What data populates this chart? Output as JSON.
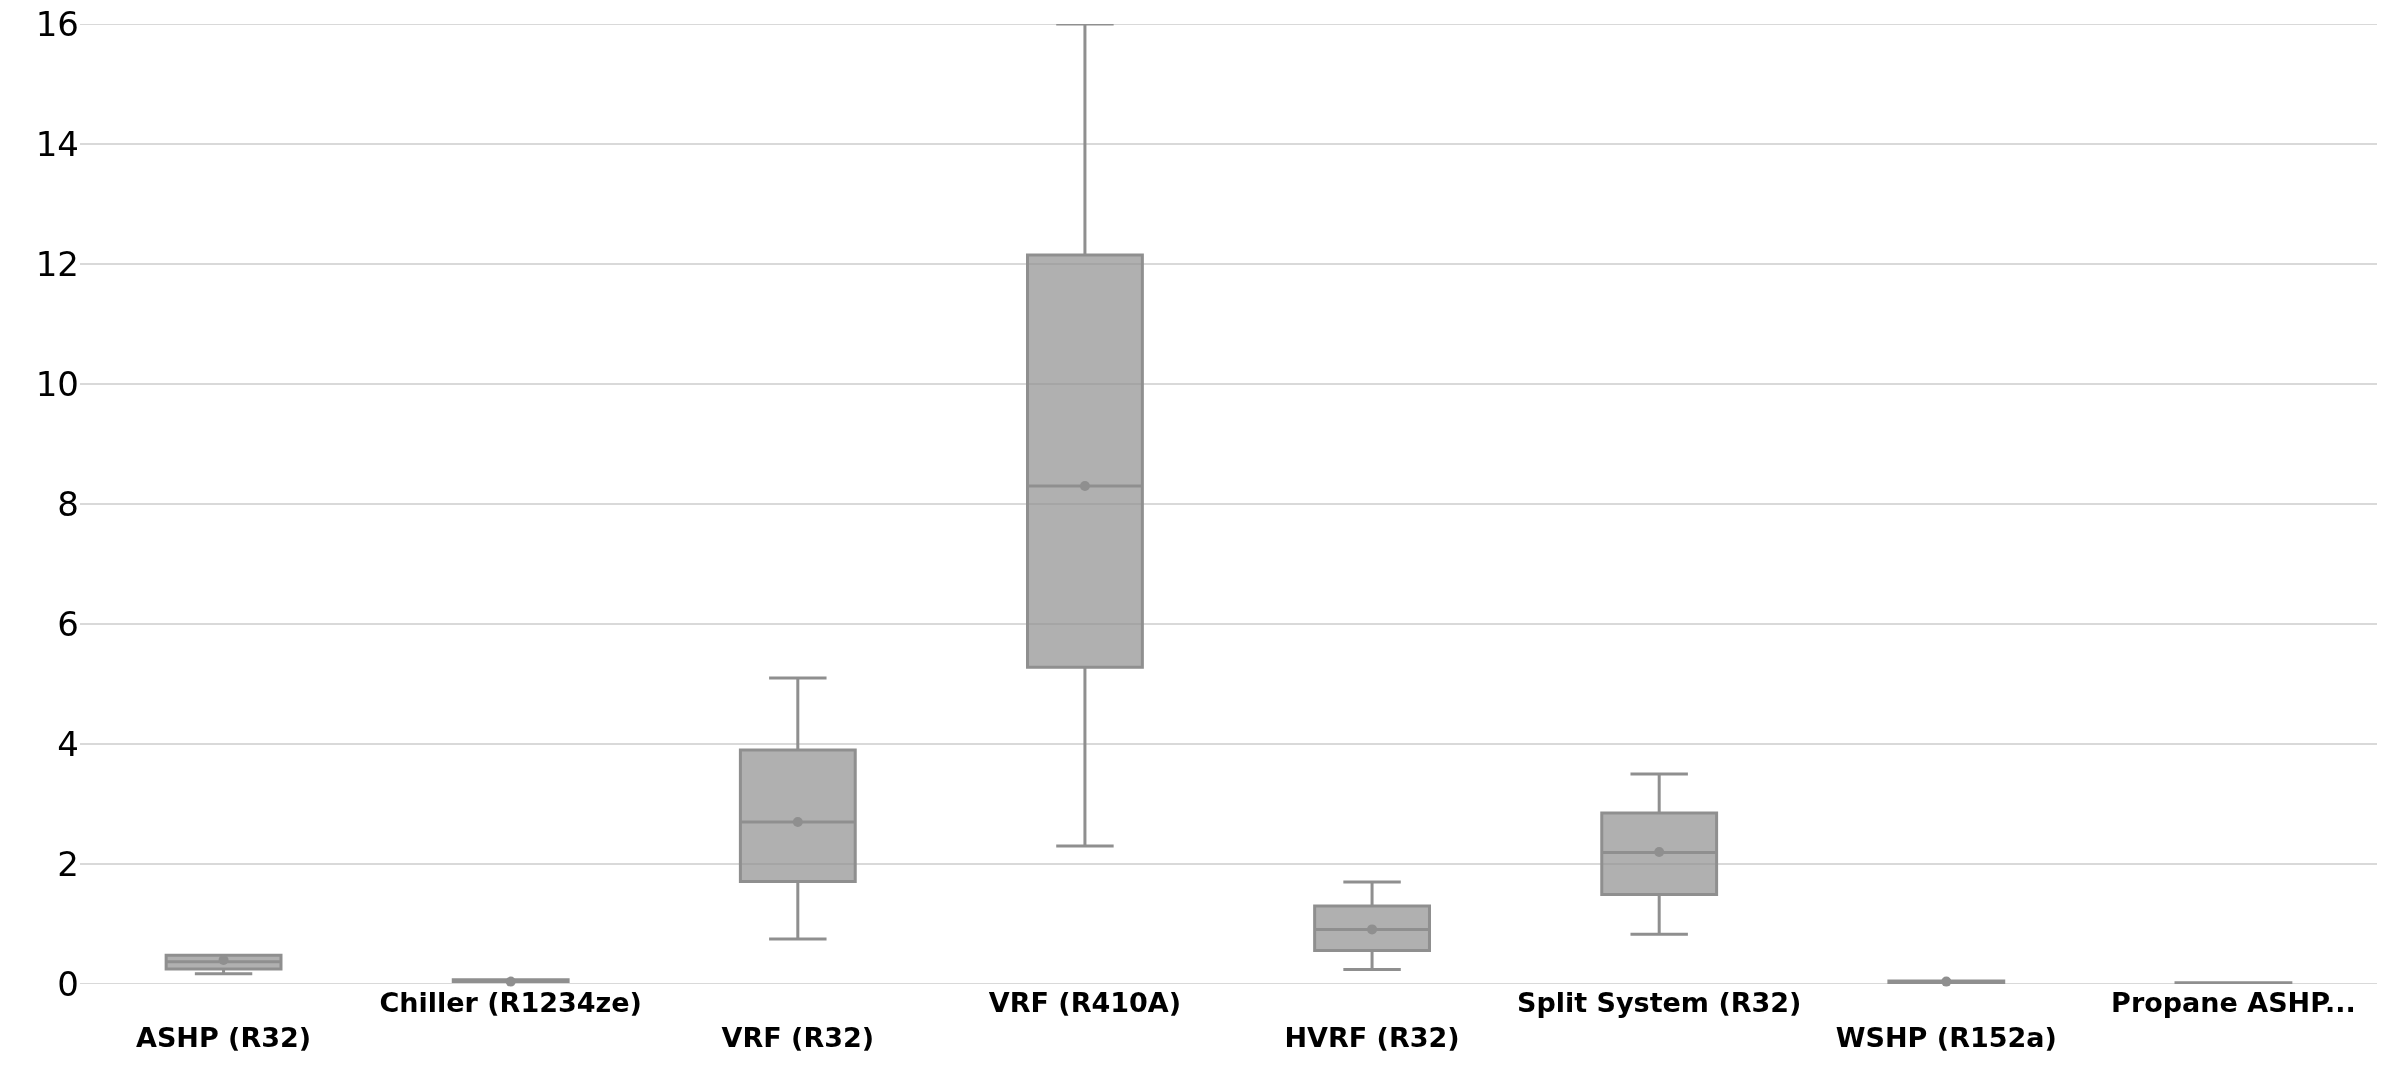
{
  "chart_data": {
    "type": "box",
    "categories": [
      "ASHP (R32)",
      "Chiller (R1234ze)",
      "VRF (R32)",
      "VRF (R410A)",
      "HVRF (R32)",
      "Split System (R32)",
      "WSHP (R152a)",
      "Propane ASHP..."
    ],
    "series": [
      {
        "color": "#8f8f8f",
        "boxes": [
          {
            "low": 0.17,
            "q1": 0.25,
            "median": 0.37,
            "q3": 0.48,
            "high": 0.48,
            "mean": 0.4
          },
          {
            "low": 0.04,
            "q1": 0.04,
            "median": 0.05,
            "q3": 0.07,
            "high": 0.07,
            "mean": 0.04
          },
          {
            "low": 0.75,
            "q1": 1.71,
            "median": 2.7,
            "q3": 3.9,
            "high": 5.1,
            "mean": 2.7
          },
          {
            "low": 2.3,
            "q1": 5.28,
            "median": 8.3,
            "q3": 12.15,
            "high": 16.0,
            "mean": 8.3
          },
          {
            "low": 0.24,
            "q1": 0.56,
            "median": 0.91,
            "q3": 1.3,
            "high": 1.7,
            "mean": 0.91
          },
          {
            "low": 0.83,
            "q1": 1.49,
            "median": 2.19,
            "q3": 2.85,
            "high": 3.5,
            "mean": 2.2
          },
          {
            "low": 0.02,
            "q1": 0.02,
            "median": 0.04,
            "q3": 0.05,
            "high": 0.05,
            "mean": 0.04
          },
          {
            "low": 0.0,
            "q1": 0.0,
            "median": 0.01,
            "q3": 0.02,
            "high": 0.02
          }
        ]
      }
    ],
    "ylim": [
      0,
      16
    ],
    "yticks": [
      0,
      2,
      4,
      6,
      8,
      10,
      12,
      14,
      16
    ],
    "grid": "y"
  }
}
